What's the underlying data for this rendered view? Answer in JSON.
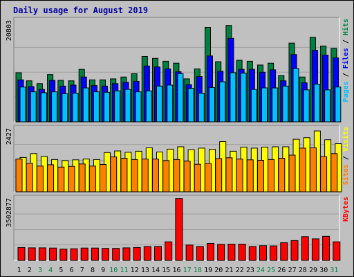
{
  "colors": {
    "background": "#c0c0c0",
    "plot_bg": "#c0c0c0",
    "grid": "#a0a0a0",
    "title": "#0000a0",
    "hits": "#008040",
    "files": "#0000ff",
    "pages": "#00c0ff",
    "visits": "#ffff00",
    "sites": "#ff8000",
    "kbytes": "#ff0000",
    "day_weekday": "#000000",
    "day_weekend": "#008040"
  },
  "chart_data": [
    {
      "type": "bar",
      "title": "Daily usage for August 2019",
      "ymax_label": "20803",
      "ylim": [
        0,
        20803
      ],
      "grid": true,
      "legend_placement": "right (vertical)",
      "categories": [
        "1",
        "2",
        "3",
        "4",
        "5",
        "6",
        "7",
        "8",
        "9",
        "10",
        "11",
        "12",
        "13",
        "14",
        "15",
        "16",
        "17",
        "18",
        "19",
        "20",
        "21",
        "22",
        "23",
        "24",
        "25",
        "26",
        "27",
        "28",
        "29",
        "30",
        "31"
      ],
      "series": [
        {
          "name": "Hits",
          "values": [
            10300,
            8600,
            8000,
            9900,
            8700,
            8600,
            11000,
            8800,
            8800,
            9000,
            9400,
            10100,
            13700,
            13300,
            12700,
            12300,
            9000,
            11100,
            19800,
            12600,
            20200,
            12900,
            12700,
            11900,
            12300,
            9700,
            16500,
            9400,
            17700,
            15900,
            15400
          ]
        },
        {
          "name": "Files",
          "values": [
            8800,
            7400,
            6800,
            8700,
            7500,
            7700,
            9400,
            7600,
            7500,
            8000,
            8300,
            8500,
            11700,
            11500,
            11100,
            10500,
            7800,
            9500,
            13800,
            10600,
            17500,
            11000,
            11000,
            10400,
            10900,
            8600,
            14100,
            8200,
            15000,
            14000,
            13400
          ]
        },
        {
          "name": "Pages",
          "values": [
            7300,
            6300,
            6100,
            6300,
            5900,
            6000,
            7100,
            6300,
            6200,
            6500,
            6800,
            6300,
            6500,
            7500,
            7700,
            10100,
            7000,
            6000,
            7200,
            8400,
            10300,
            10200,
            6800,
            7100,
            7100,
            7500,
            11200,
            6700,
            7900,
            6700,
            7300
          ]
        }
      ]
    },
    {
      "type": "bar",
      "ymax_label": "2427",
      "ylim": [
        0,
        2427
      ],
      "grid": true,
      "legend_placement": "right (vertical)",
      "categories": [
        "1",
        "2",
        "3",
        "4",
        "5",
        "6",
        "7",
        "8",
        "9",
        "10",
        "11",
        "12",
        "13",
        "14",
        "15",
        "16",
        "17",
        "18",
        "19",
        "20",
        "21",
        "22",
        "23",
        "24",
        "25",
        "26",
        "27",
        "28",
        "29",
        "30",
        "31"
      ],
      "series": [
        {
          "name": "Visits",
          "values": [
            1320,
            1470,
            1360,
            1240,
            1200,
            1230,
            1260,
            1240,
            1510,
            1570,
            1520,
            1560,
            1690,
            1530,
            1640,
            1730,
            1620,
            1680,
            1630,
            1930,
            1560,
            1720,
            1680,
            1720,
            1730,
            1730,
            2020,
            2080,
            2340,
            2000,
            1850
          ]
        },
        {
          "name": "Sites",
          "values": [
            1260,
            1100,
            990,
            1040,
            950,
            980,
            1070,
            990,
            1050,
            1340,
            1290,
            1240,
            1260,
            1260,
            1200,
            1240,
            1180,
            1060,
            1090,
            1280,
            1310,
            1260,
            1230,
            1210,
            1240,
            1290,
            1410,
            1680,
            1690,
            1350,
            1470
          ]
        }
      ]
    },
    {
      "type": "bar",
      "ymax_label": "3502877",
      "ylim": [
        0,
        3502877
      ],
      "grid": true,
      "legend_placement": "right (vertical)",
      "categories": [
        "1",
        "2",
        "3",
        "4",
        "5",
        "6",
        "7",
        "8",
        "9",
        "10",
        "11",
        "12",
        "13",
        "14",
        "15",
        "16",
        "17",
        "18",
        "19",
        "20",
        "21",
        "22",
        "23",
        "24",
        "25",
        "26",
        "27",
        "28",
        "29",
        "30",
        "31"
      ],
      "series": [
        {
          "name": "KBytes",
          "values": [
            730000,
            710000,
            710000,
            700000,
            640000,
            660000,
            700000,
            700000,
            680000,
            680000,
            710000,
            730000,
            790000,
            790000,
            1050000,
            3502877,
            870000,
            790000,
            960000,
            910000,
            920000,
            920000,
            790000,
            830000,
            820000,
            1000000,
            1120000,
            1340000,
            1220000,
            1360000,
            1050000
          ]
        }
      ]
    }
  ],
  "weekend_days": [
    "3",
    "4",
    "10",
    "11",
    "17",
    "18",
    "24",
    "25",
    "31"
  ]
}
